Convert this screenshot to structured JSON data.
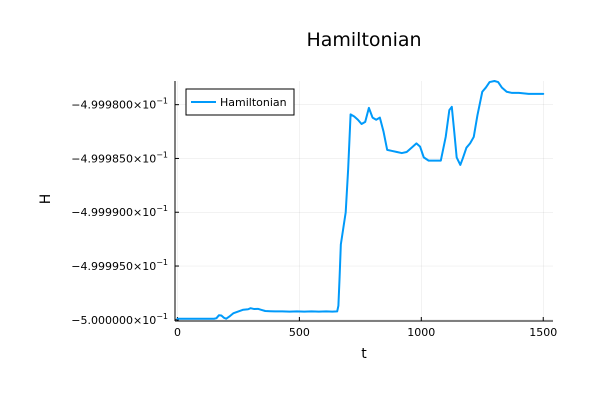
{
  "chart_data": {
    "type": "line",
    "title": "Hamiltonian",
    "xlabel": "t",
    "ylabel": "H",
    "xlim": [
      -10,
      1540
    ],
    "ylim": [
      -0.50000011,
      -0.4999778
    ],
    "xticks": [
      0,
      500,
      1000,
      1500
    ],
    "xtick_labels": [
      "0",
      "500",
      "1000",
      "1500"
    ],
    "yticks": [
      -0.5,
      -0.499995,
      -0.49999,
      -0.499985,
      -0.49998
    ],
    "ytick_labels": [
      "−5.000000×10",
      "−4.999950×10",
      "−4.999900×10",
      "−4.999850×10",
      "−4.999800×10"
    ],
    "ytick_exponent": "−1",
    "grid": true,
    "legend": {
      "position": "top-left",
      "entries": [
        "Hamiltonian"
      ]
    },
    "series": [
      {
        "name": "Hamiltonian",
        "color": "#009AFA",
        "x": [
          0,
          60,
          120,
          135,
          150,
          160,
          170,
          180,
          190,
          200,
          215,
          230,
          250,
          270,
          290,
          300,
          315,
          330,
          345,
          360,
          380,
          400,
          430,
          460,
          490,
          520,
          550,
          580,
          610,
          635,
          655,
          660,
          665,
          670,
          680,
          690,
          700,
          710,
          725,
          740,
          755,
          770,
          785,
          800,
          815,
          830,
          845,
          860,
          880,
          900,
          920,
          940,
          960,
          980,
          995,
          1010,
          1030,
          1050,
          1080,
          1100,
          1115,
          1125,
          1135,
          1145,
          1160,
          1170,
          1185,
          1200,
          1215,
          1230,
          1250,
          1265,
          1280,
          1300,
          1315,
          1330,
          1350,
          1370,
          1400,
          1440,
          1480,
          1500
        ],
        "y": [
          -0.4999999,
          -0.4999999,
          -0.4999999,
          -0.4999999,
          -0.4999999,
          -0.49999985,
          -0.49999958,
          -0.4999996,
          -0.4999998,
          -0.4999999,
          -0.49999966,
          -0.49999938,
          -0.49999922,
          -0.49999906,
          -0.49999902,
          -0.49999892,
          -0.499999,
          -0.49999898,
          -0.49999908,
          -0.49999918,
          -0.4999992,
          -0.49999922,
          -0.49999922,
          -0.49999924,
          -0.49999922,
          -0.49999924,
          -0.49999922,
          -0.49999924,
          -0.49999922,
          -0.49999924,
          -0.49999922,
          -0.4999987,
          -0.499996,
          -0.499993,
          -0.4999915,
          -0.49999,
          -0.499986,
          -0.4999809,
          -0.4999811,
          -0.4999814,
          -0.4999818,
          -0.4999816,
          -0.4999803,
          -0.4999812,
          -0.4999814,
          -0.4999812,
          -0.4999825,
          -0.4999842,
          -0.4999843,
          -0.4999844,
          -0.4999845,
          -0.4999844,
          -0.499984,
          -0.4999836,
          -0.4999839,
          -0.4999849,
          -0.4999852,
          -0.4999852,
          -0.4999852,
          -0.499983,
          -0.4999805,
          -0.4999802,
          -0.4999825,
          -0.4999849,
          -0.4999856,
          -0.499985,
          -0.499984,
          -0.4999836,
          -0.499983,
          -0.499981,
          -0.4999788,
          -0.4999784,
          -0.4999779,
          -0.4999778,
          -0.4999779,
          -0.4999784,
          -0.4999788,
          -0.4999789,
          -0.4999789,
          -0.499979,
          -0.499979,
          -0.499979
        ]
      }
    ]
  }
}
